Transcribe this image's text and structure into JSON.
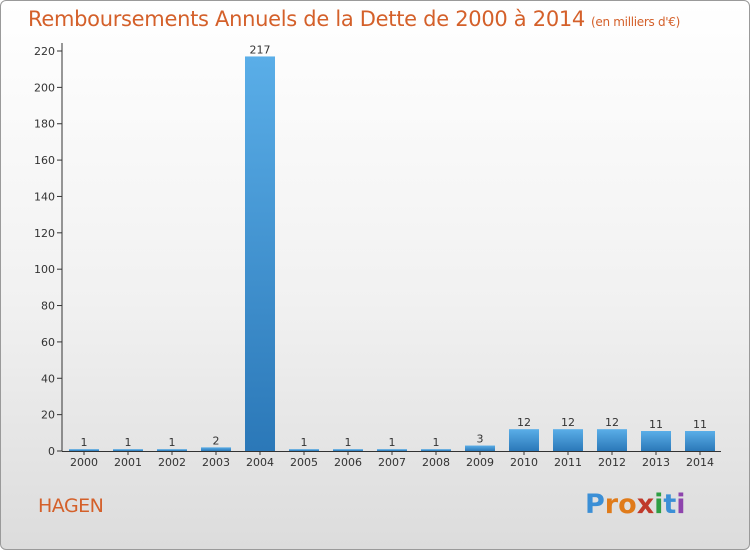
{
  "chart_data": {
    "type": "bar",
    "title": "Remboursements Annuels de la Dette de 2000 à 2014",
    "unit_note": "(en milliers d'€)",
    "categories": [
      "2000",
      "2001",
      "2002",
      "2003",
      "2004",
      "2005",
      "2006",
      "2007",
      "2008",
      "2009",
      "2010",
      "2011",
      "2012",
      "2013",
      "2014"
    ],
    "values": [
      1,
      1,
      1,
      2,
      217,
      1,
      1,
      1,
      1,
      3,
      12,
      12,
      12,
      11,
      11
    ],
    "data_labels": [
      "1",
      "1",
      "1",
      "2",
      "217",
      "1",
      "1",
      "1",
      "1",
      "3",
      "12",
      "12",
      "12",
      "11",
      "11"
    ],
    "ylim": [
      0,
      220
    ],
    "yticks": [
      "0",
      "20",
      "40",
      "60",
      "80",
      "100",
      "120",
      "140",
      "160",
      "180",
      "200",
      "220"
    ],
    "xlabel": "",
    "ylabel": "",
    "grid": false,
    "legend": "none"
  },
  "commune": "HAGEN",
  "logo": {
    "letters": [
      "P",
      "r",
      "o",
      "x",
      "i",
      "t",
      "i"
    ],
    "colors": [
      "#3b8fd6",
      "#e07b1a",
      "#e07b1a",
      "#c0392b",
      "#2f9e44",
      "#3b8fd6",
      "#8e44ad"
    ]
  },
  "colors": {
    "title": "#d4602a",
    "bar_top": "#5aaee8",
    "bar_bottom": "#2b78b8",
    "axis": "#333333"
  }
}
